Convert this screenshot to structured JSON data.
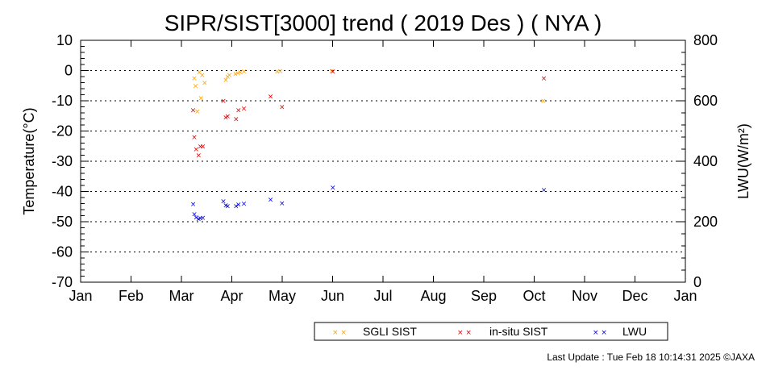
{
  "chart_data": {
    "type": "scatter",
    "title": "SIPR/SIST[3000] trend ( 2019 Des ) ( NYA )",
    "ylabel_left": "Temperature(°C)",
    "ylabel_right": "LWU(W/m²)",
    "ylim_left": [
      -70,
      10
    ],
    "ylim_right": [
      0,
      800
    ],
    "left_ticks": [
      "10",
      "0",
      "-10",
      "-20",
      "-30",
      "-40",
      "-50",
      "-60",
      "-70"
    ],
    "right_ticks": [
      "800",
      "600",
      "400",
      "200",
      "0"
    ],
    "x_ticks": [
      "Jan",
      "Feb",
      "Mar",
      "Apr",
      "May",
      "Jun",
      "Jul",
      "Aug",
      "Sep",
      "Oct",
      "Nov",
      "Dec",
      "Jan"
    ],
    "grid": "horizontal dotted",
    "legend_position": "bottom-right",
    "series": [
      {
        "name": "SGLI SIST",
        "color": "#ffa500",
        "axis": "left",
        "points": [
          [
            2019.188,
            -2.5
          ],
          [
            2019.19,
            -5.0
          ],
          [
            2019.193,
            -13.5
          ],
          [
            2019.196,
            -0.5
          ],
          [
            2019.199,
            -9.0
          ],
          [
            2019.201,
            -1.5
          ],
          [
            2019.205,
            -4.0
          ],
          [
            2019.24,
            -3.0
          ],
          [
            2019.243,
            -2.0
          ],
          [
            2019.246,
            -1.5
          ],
          [
            2019.256,
            -1.0
          ],
          [
            2019.26,
            -0.8
          ],
          [
            2019.264,
            -0.5
          ],
          [
            2019.27,
            -0.3
          ],
          [
            2019.325,
            -0.2
          ],
          [
            2019.33,
            -0.1
          ],
          [
            2019.415,
            -0.1
          ],
          [
            2019.765,
            -10.0
          ]
        ]
      },
      {
        "name": "in-situ SIST",
        "color": "#e00000",
        "axis": "left",
        "points": [
          [
            2019.186,
            -13.0
          ],
          [
            2019.188,
            -22.0
          ],
          [
            2019.191,
            -26.0
          ],
          [
            2019.195,
            -28.0
          ],
          [
            2019.198,
            -25.0
          ],
          [
            2019.202,
            -25.0
          ],
          [
            2019.236,
            -10.0
          ],
          [
            2019.24,
            -15.5
          ],
          [
            2019.243,
            -15.0
          ],
          [
            2019.257,
            -16.0
          ],
          [
            2019.261,
            -13.0
          ],
          [
            2019.27,
            -12.5
          ],
          [
            2019.314,
            -8.5
          ],
          [
            2019.333,
            -12.0
          ],
          [
            2019.417,
            -0.3
          ],
          [
            2019.766,
            -2.5
          ]
        ]
      },
      {
        "name": "LWU",
        "color": "#0000e0",
        "axis": "right",
        "points": [
          [
            2019.186,
            259
          ],
          [
            2019.188,
            225
          ],
          [
            2019.191,
            215
          ],
          [
            2019.195,
            209
          ],
          [
            2019.198,
            212
          ],
          [
            2019.202,
            214
          ],
          [
            2019.236,
            268
          ],
          [
            2019.24,
            255
          ],
          [
            2019.243,
            252
          ],
          [
            2019.257,
            252
          ],
          [
            2019.261,
            258
          ],
          [
            2019.27,
            260
          ],
          [
            2019.314,
            274
          ],
          [
            2019.333,
            262
          ],
          [
            2019.417,
            314
          ],
          [
            2019.766,
            305
          ]
        ]
      }
    ]
  },
  "footer": {
    "last_update": "Last Update : Tue Feb 18 10:14:31 2025  ©JAXA"
  }
}
